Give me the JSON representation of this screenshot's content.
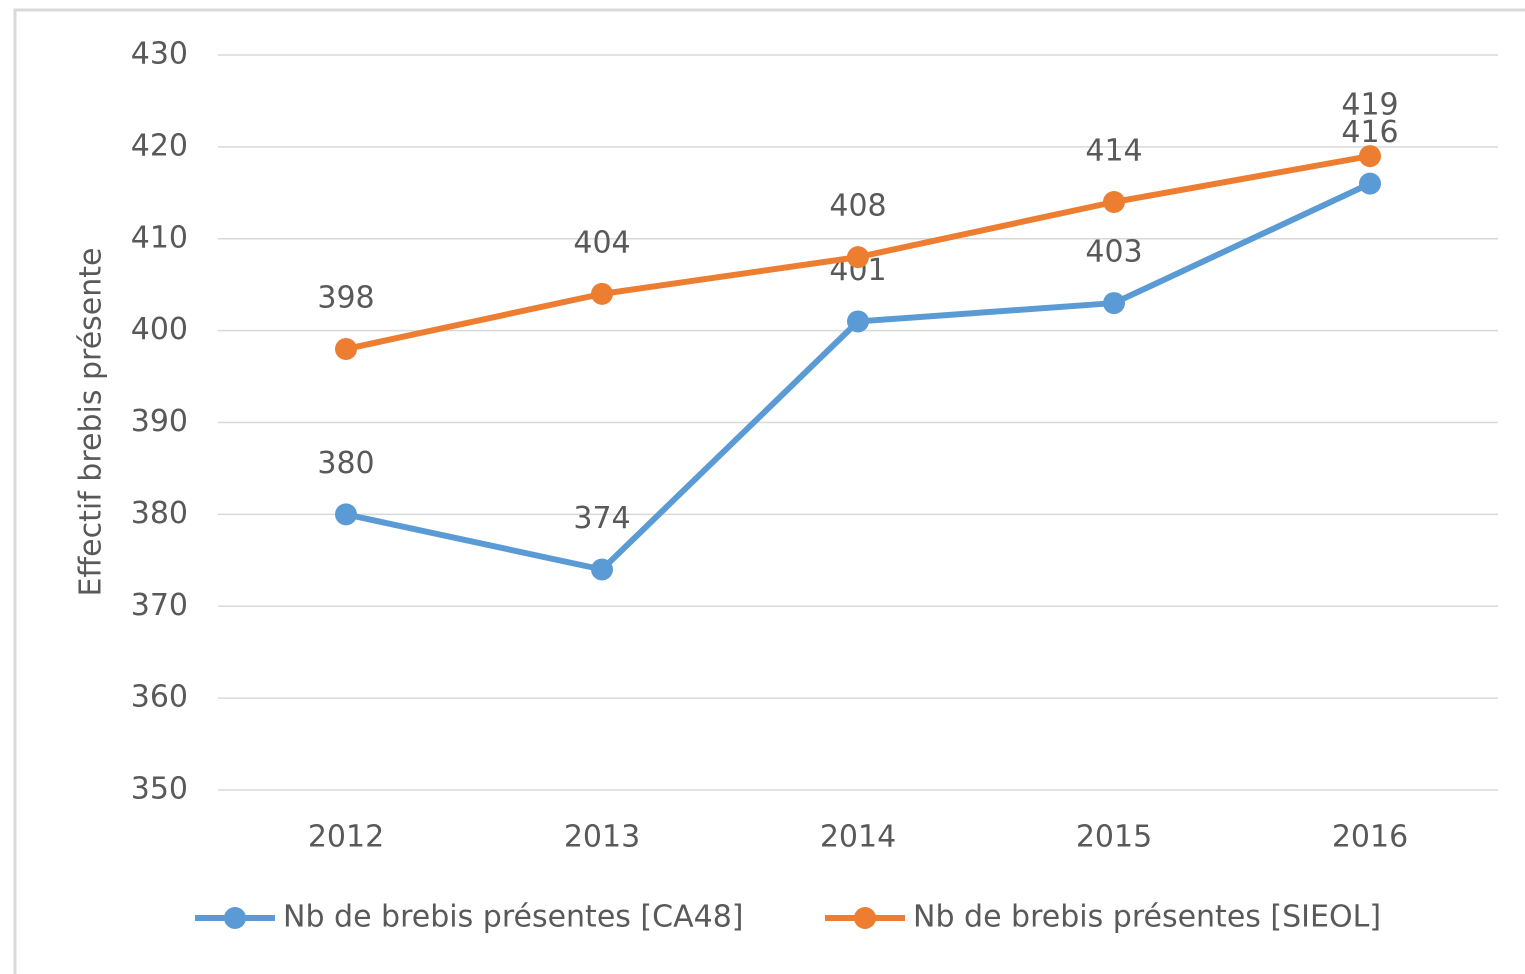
{
  "chart_data": {
    "type": "line",
    "y_axis_label": "Effectif brebis présente",
    "categories": [
      "2012",
      "2013",
      "2014",
      "2015",
      "2016"
    ],
    "series": [
      {
        "name": "Nb de brebis présentes [CA48]",
        "color": "#5b9bd5",
        "values": [
          380,
          374,
          401,
          403,
          416
        ]
      },
      {
        "name": "Nb de brebis présentes [SIEOL]",
        "color": "#ed7d31",
        "values": [
          398,
          404,
          408,
          414,
          419
        ]
      }
    ],
    "ylim": [
      350,
      430
    ],
    "yticks": [
      350,
      360,
      370,
      380,
      390,
      400,
      410,
      420,
      430
    ],
    "grid": true,
    "legend": "bottom",
    "data_labels": true
  }
}
